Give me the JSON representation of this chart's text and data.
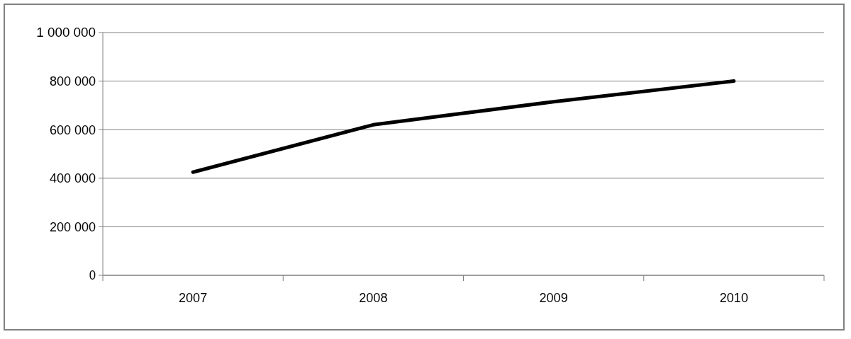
{
  "chart_data": {
    "type": "line",
    "categories": [
      "2007",
      "2008",
      "2009",
      "2010"
    ],
    "series": [
      {
        "color": "#000000",
        "values": [
          425000,
          620000,
          715000,
          800000
        ]
      }
    ],
    "ylim": [
      0,
      1000000
    ],
    "yticks": [
      0,
      {
        "value": 200000,
        "label": "200 000"
      },
      {
        "value": 400000,
        "label": "400 000"
      },
      {
        "value": 600000,
        "label": "600 000"
      },
      {
        "value": 800000,
        "label": "800 000"
      },
      {
        "value": 1000000,
        "label": "1 000 000"
      }
    ],
    "grid": "y",
    "marker": "none",
    "line_style": "solid"
  }
}
